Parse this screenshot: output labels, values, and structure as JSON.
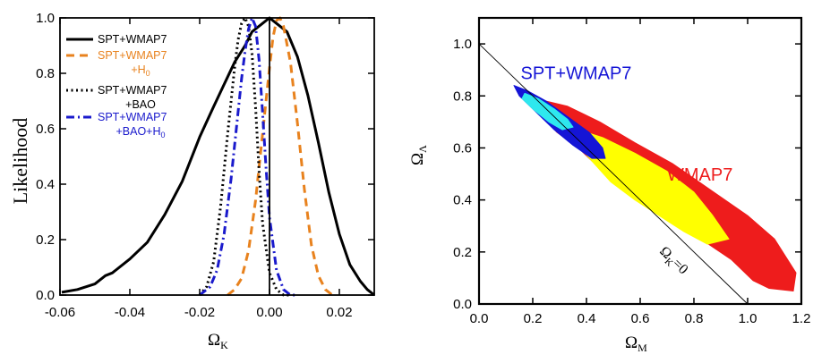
{
  "chart_data": [
    {
      "type": "line",
      "ylabel": "Likelihood",
      "xlabel_main": "Ω",
      "xlabel_sub": "K",
      "xlim": [
        -0.06,
        0.03
      ],
      "ylim": [
        0.0,
        1.0
      ],
      "xticks": [
        "-0.06",
        "-0.04",
        "-0.02",
        "0.00",
        "0.02"
      ],
      "xtick_values": [
        -0.06,
        -0.04,
        -0.02,
        0.0,
        0.02
      ],
      "yticks": [
        "0.0",
        "0.2",
        "0.4",
        "0.6",
        "0.8",
        "1.0"
      ],
      "ytick_values": [
        0.0,
        0.2,
        0.4,
        0.6,
        0.8,
        1.0
      ],
      "reference_line_x": 0.0,
      "series": [
        {
          "name": "SPT+WMAP7",
          "name_line2": "",
          "name_line2_sub": "",
          "color": "#000000",
          "style": "solid",
          "x": [
            -0.0595,
            -0.055,
            -0.05,
            -0.047,
            -0.045,
            -0.04,
            -0.035,
            -0.03,
            -0.025,
            -0.02,
            -0.016,
            -0.013,
            -0.01,
            -0.007,
            -0.005,
            -0.002,
            0.0,
            0.002,
            0.005,
            0.008,
            0.011,
            0.014,
            0.017,
            0.02,
            0.023,
            0.026,
            0.028,
            0.03
          ],
          "y": [
            0.01,
            0.02,
            0.04,
            0.07,
            0.08,
            0.13,
            0.19,
            0.29,
            0.41,
            0.57,
            0.68,
            0.76,
            0.84,
            0.9,
            0.95,
            0.98,
            1.0,
            0.98,
            0.95,
            0.86,
            0.72,
            0.55,
            0.37,
            0.22,
            0.11,
            0.05,
            0.02,
            0.0
          ]
        },
        {
          "name": "SPT+WMAP7",
          "name_line2": "+H",
          "name_line2_sub": "0",
          "color": "#e8821e",
          "style": "dashed",
          "x": [
            -0.012,
            -0.01,
            -0.008,
            -0.006,
            -0.004,
            -0.002,
            0.0,
            0.001,
            0.002,
            0.003,
            0.004,
            0.006,
            0.008,
            0.01,
            0.012,
            0.014,
            0.016,
            0.018
          ],
          "y": [
            0.0,
            0.02,
            0.06,
            0.16,
            0.34,
            0.58,
            0.82,
            0.93,
            0.99,
            1.0,
            0.97,
            0.84,
            0.62,
            0.38,
            0.18,
            0.07,
            0.02,
            0.0
          ]
        },
        {
          "name": "SPT+WMAP7",
          "name_line2": "+BAO",
          "name_line2_sub": "",
          "color": "#000000",
          "style": "dotted",
          "x": [
            -0.02,
            -0.018,
            -0.016,
            -0.014,
            -0.012,
            -0.01,
            -0.009,
            -0.008,
            -0.007,
            -0.006,
            -0.005,
            -0.004,
            -0.003,
            -0.002,
            0.0,
            0.002,
            0.004,
            0.006
          ],
          "y": [
            0.0,
            0.03,
            0.12,
            0.32,
            0.58,
            0.82,
            0.92,
            0.98,
            1.0,
            0.97,
            0.87,
            0.68,
            0.45,
            0.26,
            0.08,
            0.02,
            0.0,
            0.0
          ]
        },
        {
          "name": "SPT+WMAP7",
          "name_line2": "+BAO+H",
          "name_line2_sub": "0",
          "color": "#1a1acc",
          "style": "dashdot",
          "x": [
            -0.02,
            -0.017,
            -0.015,
            -0.013,
            -0.011,
            -0.009,
            -0.008,
            -0.007,
            -0.006,
            -0.005,
            -0.004,
            -0.003,
            -0.002,
            -0.001,
            0.0,
            0.002,
            0.004,
            0.006,
            0.008
          ],
          "y": [
            0.0,
            0.03,
            0.09,
            0.22,
            0.42,
            0.66,
            0.78,
            0.88,
            0.96,
            1.0,
            0.97,
            0.85,
            0.66,
            0.46,
            0.28,
            0.09,
            0.02,
            0.0,
            0.0
          ]
        }
      ]
    },
    {
      "type": "scatter",
      "xlabel_main": "Ω",
      "xlabel_sub": "M",
      "ylabel_main": "Ω",
      "ylabel_sub": "Λ",
      "xlim": [
        0.0,
        1.2
      ],
      "ylim": [
        0.0,
        1.1
      ],
      "xticks": [
        "0.0",
        "0.2",
        "0.4",
        "0.6",
        "0.8",
        "1.0",
        "1.2"
      ],
      "xtick_values": [
        0.0,
        0.2,
        0.4,
        0.6,
        0.8,
        1.0,
        1.2
      ],
      "yticks": [
        "0.0",
        "0.2",
        "0.4",
        "0.6",
        "0.8",
        "1.0"
      ],
      "ytick_values": [
        0.0,
        0.2,
        0.4,
        0.6,
        0.8,
        1.0
      ],
      "flat_line": {
        "label_main": "Ω",
        "label_sub": "K",
        "label_rest": "=0",
        "x": [
          0.0,
          1.0
        ],
        "y": [
          1.0,
          0.0
        ]
      },
      "regions": [
        {
          "name": "WMAP7",
          "level": "outer",
          "color": "#ee1c1c",
          "x": [
            0.21,
            0.33,
            0.45,
            0.58,
            0.72,
            0.86,
            1.0,
            1.1,
            1.18,
            1.17,
            1.08,
            1.02,
            0.94,
            0.84,
            0.74,
            0.64,
            0.54,
            0.44,
            0.37,
            0.29,
            0.24
          ],
          "y": [
            0.79,
            0.76,
            0.7,
            0.62,
            0.54,
            0.44,
            0.34,
            0.25,
            0.12,
            0.05,
            0.06,
            0.09,
            0.17,
            0.24,
            0.31,
            0.38,
            0.46,
            0.53,
            0.6,
            0.66,
            0.72
          ]
        },
        {
          "name": "WMAP7",
          "level": "inner",
          "color": "#ffff00",
          "x": [
            0.34,
            0.46,
            0.58,
            0.7,
            0.8,
            0.87,
            0.93,
            0.85,
            0.76,
            0.67,
            0.58,
            0.49,
            0.42,
            0.36
          ],
          "y": [
            0.68,
            0.64,
            0.58,
            0.51,
            0.43,
            0.34,
            0.25,
            0.23,
            0.28,
            0.34,
            0.4,
            0.47,
            0.55,
            0.62
          ]
        },
        {
          "name": "SPT+WMAP7",
          "level": "outer",
          "color": "#1515d6",
          "x": [
            0.13,
            0.18,
            0.25,
            0.33,
            0.41,
            0.46,
            0.47,
            0.42,
            0.35,
            0.28,
            0.21,
            0.15
          ],
          "y": [
            0.84,
            0.82,
            0.78,
            0.72,
            0.66,
            0.6,
            0.56,
            0.56,
            0.61,
            0.67,
            0.74,
            0.8
          ]
        },
        {
          "name": "SPT+WMAP7",
          "level": "inner",
          "color": "#2ee8ee",
          "x": [
            0.17,
            0.22,
            0.28,
            0.33,
            0.35,
            0.31,
            0.26,
            0.2,
            0.16
          ],
          "y": [
            0.81,
            0.79,
            0.75,
            0.71,
            0.68,
            0.67,
            0.7,
            0.75,
            0.79
          ]
        }
      ],
      "annotations": [
        {
          "text": "SPT+WMAP7",
          "color": "#1515d6",
          "x": 0.155,
          "y": 0.865
        },
        {
          "text": "WMAP7",
          "color": "#ee1c1c",
          "x": 0.7,
          "y": 0.475
        }
      ]
    }
  ]
}
